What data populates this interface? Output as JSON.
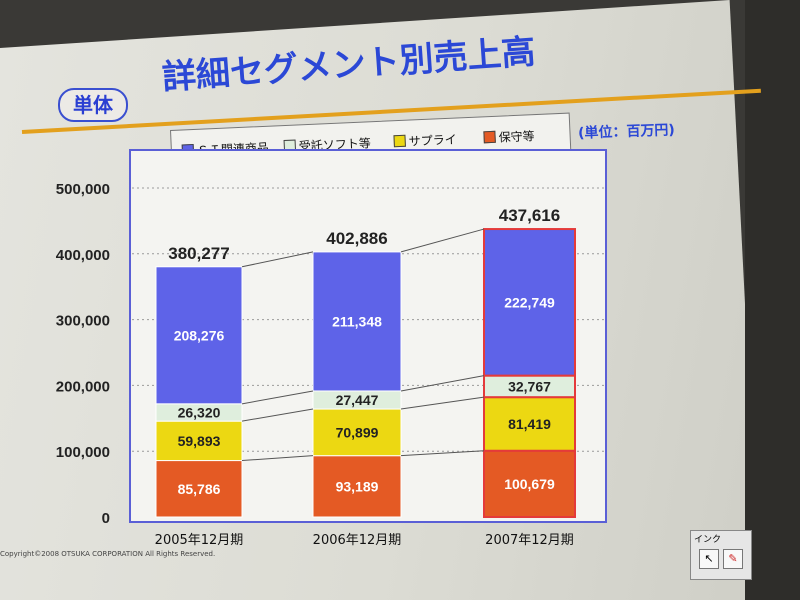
{
  "header": {
    "badge": "単体",
    "title": "詳細セグメント別売上高",
    "unit_note": "(単位：百万円)"
  },
  "footer": {
    "copyright": "Copyright©2008 OTSUKA CORPORATION All Rights Reserved."
  },
  "ink_toolbar": {
    "label": "インク"
  },
  "colors": {
    "title": "#2b48d6",
    "accent_line": "#e3a01d",
    "si": "#5e63e8",
    "software": "#dfeedd",
    "supply": "#ecd812",
    "maintenance": "#e45a24",
    "highlight_border": "#e43a3a"
  },
  "chart_data": {
    "type": "bar",
    "stacked": true,
    "categories": [
      "2005年12月期",
      "2006年12月期",
      "2007年12月期"
    ],
    "series": [
      {
        "name": "保守等",
        "values": [
          85786,
          93189,
          100679
        ]
      },
      {
        "name": "サプライ",
        "values": [
          59893,
          70899,
          81419
        ]
      },
      {
        "name": "受託ソフト等",
        "values": [
          26320,
          27447,
          32767
        ]
      },
      {
        "name": "ＳＩ関連商品",
        "values": [
          208276,
          211348,
          222749
        ]
      }
    ],
    "totals": [
      380277,
      402886,
      437616
    ],
    "total_labels": [
      "380,277",
      "402,886",
      "437,616"
    ],
    "value_labels": [
      [
        "85,786",
        "93,189",
        "100,679"
      ],
      [
        "59,893",
        "70,899",
        "81,419"
      ],
      [
        "26,320",
        "27,447",
        "32,767"
      ],
      [
        "208,276",
        "211,348",
        "222,749"
      ]
    ],
    "legend": [
      "ＳＩ関連商品",
      "受託ソフト等",
      "サプライ",
      "保守等"
    ],
    "legend_placement": "top",
    "y_ticks": [
      "0",
      "100,000",
      "200,000",
      "300,000",
      "400,000",
      "500,000"
    ],
    "ylim": [
      0,
      500000
    ],
    "grid": true,
    "xlabel": "",
    "ylabel": ""
  }
}
